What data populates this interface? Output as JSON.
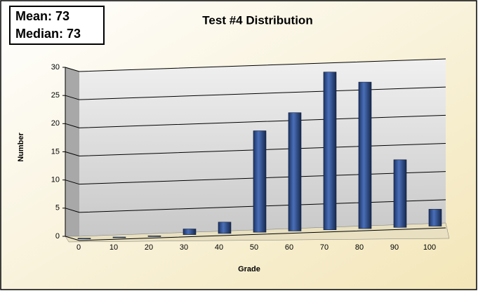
{
  "chart_data": {
    "type": "bar",
    "title": "Test #4 Distribution",
    "annotations": [
      "Mean: 73",
      "Median: 73"
    ],
    "x_label": "Grade",
    "y_label": "Number",
    "categories": [
      "0",
      "10",
      "20",
      "30",
      "40",
      "50",
      "60",
      "70",
      "80",
      "90",
      "100"
    ],
    "values": [
      0,
      0,
      0,
      1,
      2,
      18,
      21,
      28,
      26,
      12,
      3
    ],
    "color": "#2b4c8c",
    "ylim": [
      0,
      30
    ],
    "yticks": [
      0,
      5,
      10,
      15,
      20,
      25,
      30
    ],
    "grid": true
  }
}
